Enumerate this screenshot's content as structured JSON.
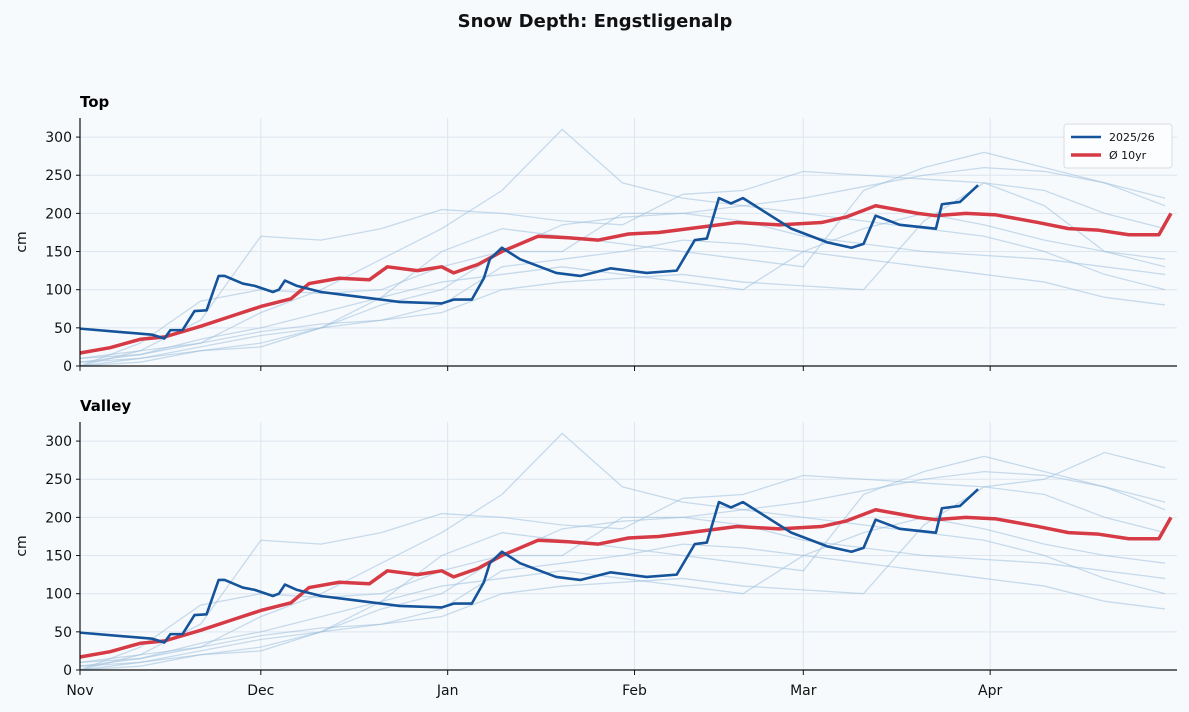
{
  "chart_data": {
    "type": "line",
    "title": "Snow Depth: Engstligenalp",
    "colors": {
      "current": "#15539a",
      "average": "#d63a45",
      "history": "#9fbfdc",
      "background": "#f7fafd"
    },
    "legend": {
      "placement": "top-right",
      "entries": [
        "2025/26",
        "Ø 10yr"
      ]
    },
    "xlim": [
      "2025-11-01",
      "2026-05-02"
    ],
    "xticks": [
      {
        "date": "2025-11-01",
        "label": "Nov"
      },
      {
        "date": "2025-12-01",
        "label": "Dec"
      },
      {
        "date": "2026-01-01",
        "label": "Jan"
      },
      {
        "date": "2026-02-01",
        "label": "Feb"
      },
      {
        "date": "2026-03-01",
        "label": "Mar"
      },
      {
        "date": "2026-04-01",
        "label": "Apr"
      }
    ],
    "grid": true,
    "history_dates": [
      "2025-11-01",
      "2025-11-11",
      "2025-11-21",
      "2025-12-01",
      "2025-12-11",
      "2025-12-21",
      "2025-12-31",
      "2026-01-10",
      "2026-01-20",
      "2026-01-30",
      "2026-02-09",
      "2026-02-19",
      "2026-03-01",
      "2026-03-11",
      "2026-03-21",
      "2026-03-31",
      "2026-04-10",
      "2026-04-20",
      "2026-04-30"
    ],
    "panels": [
      {
        "title": "Top",
        "ylabel": "cm",
        "ylim": [
          0,
          325
        ],
        "yticks": [
          0,
          50,
          100,
          150,
          200,
          250,
          300
        ],
        "current": [
          [
            "2025-11-01",
            49
          ],
          [
            "2025-11-13",
            41
          ],
          [
            "2025-11-15",
            36
          ],
          [
            "2025-11-16",
            47
          ],
          [
            "2025-11-18",
            47
          ],
          [
            "2025-11-20",
            72
          ],
          [
            "2025-11-22",
            73
          ],
          [
            "2025-11-24",
            118
          ],
          [
            "2025-11-25",
            118
          ],
          [
            "2025-11-28",
            108
          ],
          [
            "2025-11-30",
            105
          ],
          [
            "2025-12-03",
            97
          ],
          [
            "2025-12-04",
            100
          ],
          [
            "2025-12-05",
            112
          ],
          [
            "2025-12-07",
            105
          ],
          [
            "2025-12-11",
            97
          ],
          [
            "2025-12-16",
            92
          ],
          [
            "2025-12-24",
            84
          ],
          [
            "2025-12-31",
            82
          ],
          [
            "2026-01-02",
            87
          ],
          [
            "2026-01-05",
            87
          ],
          [
            "2026-01-07",
            115
          ],
          [
            "2026-01-08",
            140
          ],
          [
            "2026-01-10",
            155
          ],
          [
            "2026-01-13",
            140
          ],
          [
            "2026-01-19",
            122
          ],
          [
            "2026-01-23",
            118
          ],
          [
            "2026-01-28",
            128
          ],
          [
            "2026-02-03",
            122
          ],
          [
            "2026-02-08",
            125
          ],
          [
            "2026-02-11",
            165
          ],
          [
            "2026-02-13",
            167
          ],
          [
            "2026-02-15",
            220
          ],
          [
            "2026-02-17",
            213
          ],
          [
            "2026-02-19",
            220
          ],
          [
            "2026-02-27",
            180
          ],
          [
            "2026-03-05",
            162
          ],
          [
            "2026-03-09",
            155
          ],
          [
            "2026-03-11",
            160
          ],
          [
            "2026-03-13",
            197
          ],
          [
            "2026-03-17",
            185
          ],
          [
            "2026-03-23",
            180
          ],
          [
            "2026-03-24",
            212
          ],
          [
            "2026-03-27",
            215
          ],
          [
            "2026-03-30",
            237
          ]
        ],
        "average": [
          [
            "2025-11-01",
            17
          ],
          [
            "2025-11-06",
            24
          ],
          [
            "2025-11-11",
            35
          ],
          [
            "2025-11-15",
            38
          ],
          [
            "2025-11-21",
            52
          ],
          [
            "2025-11-26",
            65
          ],
          [
            "2025-12-01",
            78
          ],
          [
            "2025-12-06",
            88
          ],
          [
            "2025-12-09",
            108
          ],
          [
            "2025-12-14",
            115
          ],
          [
            "2025-12-19",
            113
          ],
          [
            "2025-12-22",
            130
          ],
          [
            "2025-12-27",
            125
          ],
          [
            "2025-12-31",
            130
          ],
          [
            "2026-01-02",
            122
          ],
          [
            "2026-01-06",
            133
          ],
          [
            "2026-01-10",
            150
          ],
          [
            "2026-01-16",
            170
          ],
          [
            "2026-01-21",
            168
          ],
          [
            "2026-01-26",
            165
          ],
          [
            "2026-01-31",
            173
          ],
          [
            "2026-02-05",
            175
          ],
          [
            "2026-02-12",
            182
          ],
          [
            "2026-02-18",
            188
          ],
          [
            "2026-02-25",
            185
          ],
          [
            "2026-03-04",
            188
          ],
          [
            "2026-03-08",
            195
          ],
          [
            "2026-03-13",
            210
          ],
          [
            "2026-03-20",
            200
          ],
          [
            "2026-03-23",
            197
          ],
          [
            "2026-03-28",
            200
          ],
          [
            "2026-04-02",
            198
          ],
          [
            "2026-04-09",
            188
          ],
          [
            "2026-04-14",
            180
          ],
          [
            "2026-04-19",
            178
          ],
          [
            "2026-04-24",
            172
          ],
          [
            "2026-04-29",
            172
          ],
          [
            "2026-05-01",
            200
          ]
        ],
        "history": [
          [
            0,
            30,
            85,
            100,
            95,
            100,
            130,
            150,
            150,
            200,
            200,
            190,
            170,
            160,
            150,
            145,
            140,
            130,
            120
          ],
          [
            10,
            20,
            60,
            170,
            165,
            180,
            205,
            200,
            190,
            185,
            225,
            230,
            255,
            250,
            245,
            240,
            230,
            200,
            180
          ],
          [
            0,
            10,
            20,
            30,
            50,
            90,
            150,
            180,
            170,
            160,
            150,
            140,
            130,
            230,
            260,
            280,
            260,
            240,
            220
          ],
          [
            5,
            15,
            30,
            70,
            100,
            140,
            180,
            230,
            310,
            240,
            220,
            210,
            200,
            190,
            180,
            170,
            150,
            120,
            100
          ],
          [
            0,
            20,
            30,
            45,
            55,
            60,
            70,
            100,
            110,
            115,
            120,
            110,
            105,
            100,
            190,
            240,
            210,
            150,
            130
          ],
          [
            5,
            10,
            25,
            40,
            50,
            60,
            80,
            130,
            140,
            150,
            165,
            160,
            150,
            140,
            130,
            120,
            110,
            90,
            80
          ],
          [
            0,
            5,
            20,
            25,
            50,
            80,
            100,
            150,
            185,
            195,
            200,
            210,
            220,
            235,
            250,
            260,
            255,
            240,
            210
          ],
          [
            10,
            15,
            35,
            50,
            70,
            90,
            110,
            120,
            130,
            120,
            110,
            100,
            150,
            180,
            200,
            185,
            165,
            150,
            140
          ]
        ]
      },
      {
        "title": "Valley",
        "ylabel": "cm",
        "ylim": [
          0,
          325
        ],
        "yticks": [
          0,
          50,
          100,
          150,
          200,
          250,
          300
        ],
        "current": [
          [
            "2025-11-01",
            49
          ],
          [
            "2025-11-13",
            41
          ],
          [
            "2025-11-15",
            36
          ],
          [
            "2025-11-16",
            47
          ],
          [
            "2025-11-18",
            47
          ],
          [
            "2025-11-20",
            72
          ],
          [
            "2025-11-22",
            73
          ],
          [
            "2025-11-24",
            118
          ],
          [
            "2025-11-25",
            118
          ],
          [
            "2025-11-28",
            108
          ],
          [
            "2025-11-30",
            105
          ],
          [
            "2025-12-03",
            97
          ],
          [
            "2025-12-04",
            100
          ],
          [
            "2025-12-05",
            112
          ],
          [
            "2025-12-07",
            105
          ],
          [
            "2025-12-11",
            97
          ],
          [
            "2025-12-16",
            92
          ],
          [
            "2025-12-24",
            84
          ],
          [
            "2025-12-31",
            82
          ],
          [
            "2026-01-02",
            87
          ],
          [
            "2026-01-05",
            87
          ],
          [
            "2026-01-07",
            115
          ],
          [
            "2026-01-08",
            140
          ],
          [
            "2026-01-10",
            155
          ],
          [
            "2026-01-13",
            140
          ],
          [
            "2026-01-19",
            122
          ],
          [
            "2026-01-23",
            118
          ],
          [
            "2026-01-28",
            128
          ],
          [
            "2026-02-03",
            122
          ],
          [
            "2026-02-08",
            125
          ],
          [
            "2026-02-11",
            165
          ],
          [
            "2026-02-13",
            167
          ],
          [
            "2026-02-15",
            220
          ],
          [
            "2026-02-17",
            213
          ],
          [
            "2026-02-19",
            220
          ],
          [
            "2026-02-27",
            180
          ],
          [
            "2026-03-05",
            162
          ],
          [
            "2026-03-09",
            155
          ],
          [
            "2026-03-11",
            160
          ],
          [
            "2026-03-13",
            197
          ],
          [
            "2026-03-17",
            185
          ],
          [
            "2026-03-23",
            180
          ],
          [
            "2026-03-24",
            212
          ],
          [
            "2026-03-27",
            215
          ],
          [
            "2026-03-30",
            237
          ]
        ],
        "average": [
          [
            "2025-11-01",
            17
          ],
          [
            "2025-11-06",
            24
          ],
          [
            "2025-11-11",
            35
          ],
          [
            "2025-11-15",
            38
          ],
          [
            "2025-11-21",
            52
          ],
          [
            "2025-11-26",
            65
          ],
          [
            "2025-12-01",
            78
          ],
          [
            "2025-12-06",
            88
          ],
          [
            "2025-12-09",
            108
          ],
          [
            "2025-12-14",
            115
          ],
          [
            "2025-12-19",
            113
          ],
          [
            "2025-12-22",
            130
          ],
          [
            "2025-12-27",
            125
          ],
          [
            "2025-12-31",
            130
          ],
          [
            "2026-01-02",
            122
          ],
          [
            "2026-01-06",
            133
          ],
          [
            "2026-01-10",
            150
          ],
          [
            "2026-01-16",
            170
          ],
          [
            "2026-01-21",
            168
          ],
          [
            "2026-01-26",
            165
          ],
          [
            "2026-01-31",
            173
          ],
          [
            "2026-02-05",
            175
          ],
          [
            "2026-02-12",
            182
          ],
          [
            "2026-02-18",
            188
          ],
          [
            "2026-02-25",
            185
          ],
          [
            "2026-03-04",
            188
          ],
          [
            "2026-03-08",
            195
          ],
          [
            "2026-03-13",
            210
          ],
          [
            "2026-03-20",
            200
          ],
          [
            "2026-03-23",
            197
          ],
          [
            "2026-03-28",
            200
          ],
          [
            "2026-04-02",
            198
          ],
          [
            "2026-04-09",
            188
          ],
          [
            "2026-04-14",
            180
          ],
          [
            "2026-04-19",
            178
          ],
          [
            "2026-04-24",
            172
          ],
          [
            "2026-04-29",
            172
          ],
          [
            "2026-05-01",
            200
          ]
        ],
        "history": [
          [
            0,
            30,
            85,
            100,
            95,
            100,
            130,
            150,
            150,
            200,
            200,
            190,
            170,
            160,
            150,
            145,
            140,
            130,
            120
          ],
          [
            10,
            20,
            60,
            170,
            165,
            180,
            205,
            200,
            190,
            185,
            225,
            230,
            255,
            250,
            245,
            240,
            230,
            200,
            180
          ],
          [
            0,
            10,
            20,
            30,
            50,
            90,
            150,
            180,
            170,
            160,
            150,
            140,
            130,
            230,
            260,
            280,
            260,
            240,
            220
          ],
          [
            5,
            15,
            30,
            70,
            100,
            140,
            180,
            230,
            310,
            240,
            220,
            210,
            200,
            190,
            180,
            170,
            150,
            120,
            100
          ],
          [
            0,
            20,
            30,
            45,
            55,
            60,
            70,
            100,
            110,
            115,
            120,
            110,
            105,
            100,
            190,
            240,
            250,
            285,
            265
          ],
          [
            5,
            10,
            25,
            40,
            50,
            60,
            80,
            130,
            140,
            150,
            165,
            160,
            150,
            140,
            130,
            120,
            110,
            90,
            80
          ],
          [
            0,
            5,
            20,
            25,
            50,
            80,
            100,
            150,
            185,
            195,
            200,
            210,
            220,
            235,
            250,
            260,
            255,
            240,
            210
          ],
          [
            10,
            15,
            35,
            50,
            70,
            90,
            110,
            120,
            130,
            120,
            110,
            100,
            150,
            180,
            200,
            185,
            165,
            150,
            140
          ]
        ]
      }
    ]
  }
}
